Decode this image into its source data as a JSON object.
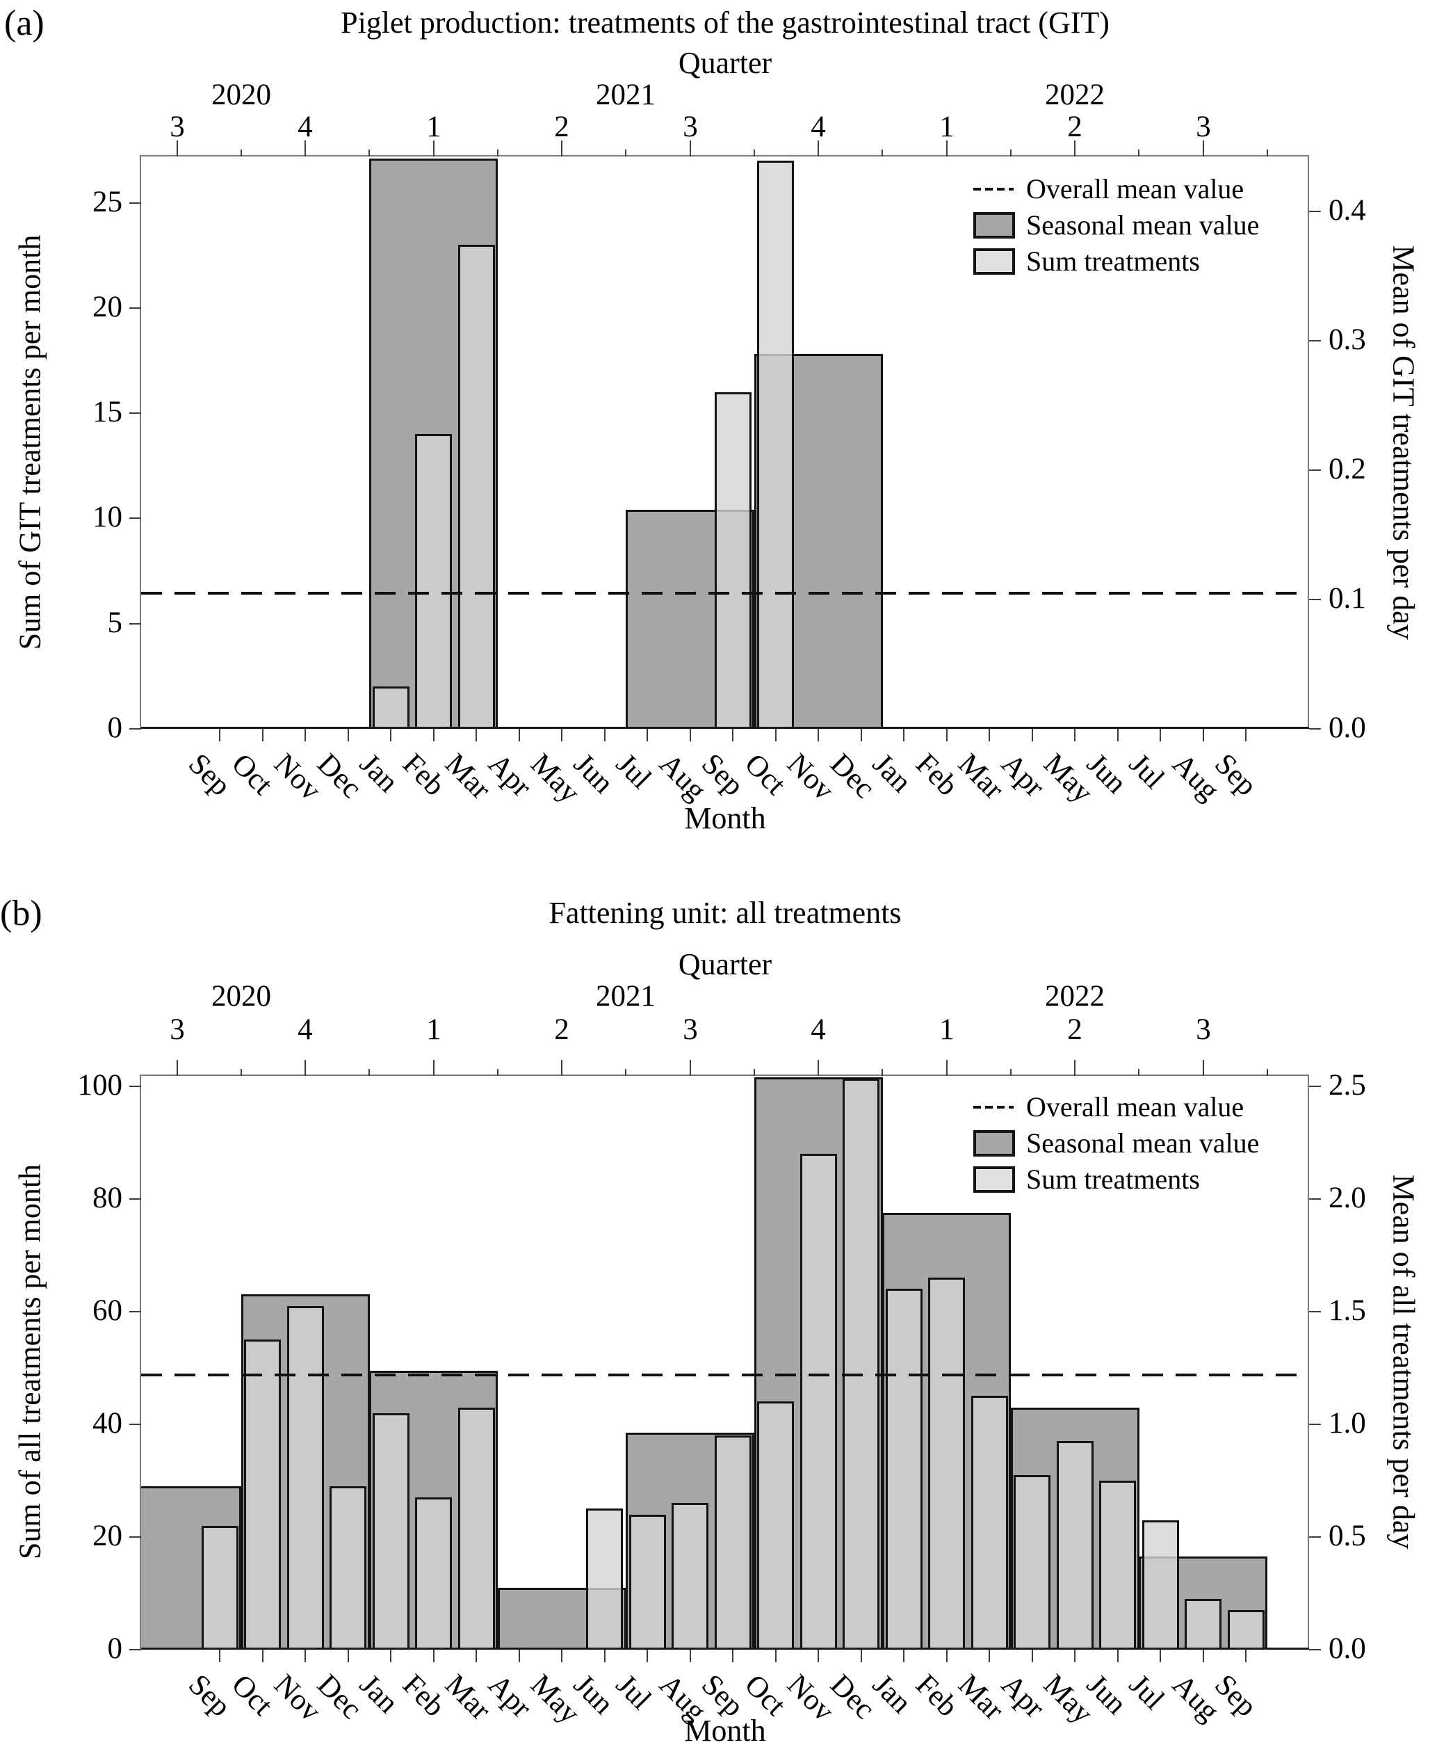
{
  "colors": {
    "seasonal_fill": "#a7a7a7",
    "sum_fill": "#d4d4d4",
    "sum_opacity": 0.8,
    "bar_border": "#141414",
    "mean_line": "#111111",
    "frame": "#7a7a7a"
  },
  "chart_data": [
    {
      "type": "bar",
      "panel": "(a)",
      "title": "Piglet production: treatments of the gastrointestinal tract (GIT)",
      "top_axis_label": "Quarter",
      "xlabel": "Month",
      "ylabel_left": "Sum of GIT treatments per month",
      "ylabel_right": "Mean of GIT treatments per day",
      "ylim_left": [
        0,
        27.2
      ],
      "yticks_left": [
        0,
        5,
        10,
        15,
        20,
        25
      ],
      "yticks_right": [
        {
          "label": "0.0",
          "value": 0.0
        },
        {
          "label": "0.1",
          "value": 0.1
        },
        {
          "label": "0.2",
          "value": 0.2
        },
        {
          "label": "0.3",
          "value": 0.3
        },
        {
          "label": "0.4",
          "value": 0.4
        }
      ],
      "right_axis_left_units_per_unit": 61.5,
      "overall_mean": 6.45,
      "years": [
        {
          "label": "2020",
          "month_center": 0.5
        },
        {
          "label": "2021",
          "month_center": 9.5
        },
        {
          "label": "2022",
          "month_center": 20
        }
      ],
      "quarters": [
        {
          "label": "3",
          "month_center": -1
        },
        {
          "label": "4",
          "month_center": 2
        },
        {
          "label": "1",
          "month_center": 5
        },
        {
          "label": "2",
          "month_center": 8
        },
        {
          "label": "3",
          "month_center": 11
        },
        {
          "label": "4",
          "month_center": 14
        },
        {
          "label": "1",
          "month_center": 17
        },
        {
          "label": "2",
          "month_center": 20
        },
        {
          "label": "3",
          "month_center": 23
        }
      ],
      "months": [
        "Sep",
        "Oct",
        "Nov",
        "Dec",
        "Jan",
        "Feb",
        "Mar",
        "Apr",
        "May",
        "Jun",
        "Jul",
        "Aug",
        "Sep",
        "Oct",
        "Nov",
        "Dec",
        "Jan",
        "Feb",
        "Mar",
        "Apr",
        "May",
        "Jun",
        "Jul",
        "Aug",
        "Sep"
      ],
      "seasonal_mean_by_quarter": [
        {
          "quarter": "Q3 2020",
          "value": 0
        },
        {
          "quarter": "Q4 2020",
          "value": 0
        },
        {
          "quarter": "Q1 2021",
          "value": 27.1
        },
        {
          "quarter": "Q2 2021",
          "value": 0
        },
        {
          "quarter": "Q3 2021",
          "value": 10.4
        },
        {
          "quarter": "Q4 2021",
          "value": 17.8
        },
        {
          "quarter": "Q1 2022",
          "value": 0
        },
        {
          "quarter": "Q2 2022",
          "value": 0
        },
        {
          "quarter": "Q3 2022",
          "value": 0
        }
      ],
      "sum_treatments_by_month": [
        0,
        0,
        0,
        0,
        2,
        14,
        23,
        0,
        0,
        0,
        0,
        0,
        16,
        27,
        0,
        0,
        0,
        0,
        0,
        0,
        0,
        0,
        0,
        0,
        0
      ],
      "legend": [
        {
          "label": "Overall mean value",
          "swatch": "dashed-line"
        },
        {
          "label": "Seasonal mean value",
          "swatch": "seasonal"
        },
        {
          "label": "Sum treatments",
          "swatch": "sum"
        }
      ]
    },
    {
      "type": "bar",
      "panel": "(b)",
      "title": "Fattening unit: all treatments",
      "top_axis_label": "Quarter",
      "xlabel": "Month",
      "ylabel_left": "Sum of all treatments per month",
      "ylabel_right": "Mean of all treatments per day",
      "ylim_left": [
        0,
        101.8
      ],
      "yticks_left": [
        0,
        20,
        40,
        60,
        80,
        100
      ],
      "yticks_right": [
        {
          "label": "0.0",
          "value": 0.0
        },
        {
          "label": "0.5",
          "value": 0.5
        },
        {
          "label": "1.0",
          "value": 1.0
        },
        {
          "label": "1.5",
          "value": 1.5
        },
        {
          "label": "2.0",
          "value": 2.0
        },
        {
          "label": "2.5",
          "value": 2.5
        }
      ],
      "right_axis_left_units_per_unit": 40,
      "overall_mean": 48.8,
      "years": [
        {
          "label": "2020",
          "month_center": 0.5
        },
        {
          "label": "2021",
          "month_center": 9.5
        },
        {
          "label": "2022",
          "month_center": 20
        }
      ],
      "quarters": [
        {
          "label": "3",
          "month_center": -1
        },
        {
          "label": "4",
          "month_center": 2
        },
        {
          "label": "1",
          "month_center": 5
        },
        {
          "label": "2",
          "month_center": 8
        },
        {
          "label": "3",
          "month_center": 11
        },
        {
          "label": "4",
          "month_center": 14
        },
        {
          "label": "1",
          "month_center": 17
        },
        {
          "label": "2",
          "month_center": 20
        },
        {
          "label": "3",
          "month_center": 23
        }
      ],
      "months": [
        "Sep",
        "Oct",
        "Nov",
        "Dec",
        "Jan",
        "Feb",
        "Mar",
        "Apr",
        "May",
        "Jun",
        "Jul",
        "Aug",
        "Sep",
        "Oct",
        "Nov",
        "Dec",
        "Jan",
        "Feb",
        "Mar",
        "Apr",
        "May",
        "Jun",
        "Jul",
        "Aug",
        "Sep"
      ],
      "seasonal_mean_by_quarter": [
        {
          "quarter": "Q3 2020",
          "value": 29
        },
        {
          "quarter": "Q4 2020",
          "value": 63
        },
        {
          "quarter": "Q1 2021",
          "value": 49.5
        },
        {
          "quarter": "Q2 2021",
          "value": 11
        },
        {
          "quarter": "Q3 2021",
          "value": 38.5
        },
        {
          "quarter": "Q4 2021",
          "value": 101.5
        },
        {
          "quarter": "Q1 2022",
          "value": 77.5
        },
        {
          "quarter": "Q2 2022",
          "value": 43
        },
        {
          "quarter": "Q3 2022",
          "value": 16.5
        }
      ],
      "sum_treatments_by_month": [
        22,
        55,
        61,
        29,
        42,
        27,
        43,
        0,
        0,
        25,
        24,
        26,
        38,
        44,
        88,
        101.3,
        64,
        66,
        45,
        31,
        37,
        30,
        23,
        9,
        7
      ],
      "legend": [
        {
          "label": "Overall mean value",
          "swatch": "dashed-line"
        },
        {
          "label": "Seasonal mean value",
          "swatch": "seasonal"
        },
        {
          "label": "Sum treatments",
          "swatch": "sum"
        }
      ]
    }
  ]
}
